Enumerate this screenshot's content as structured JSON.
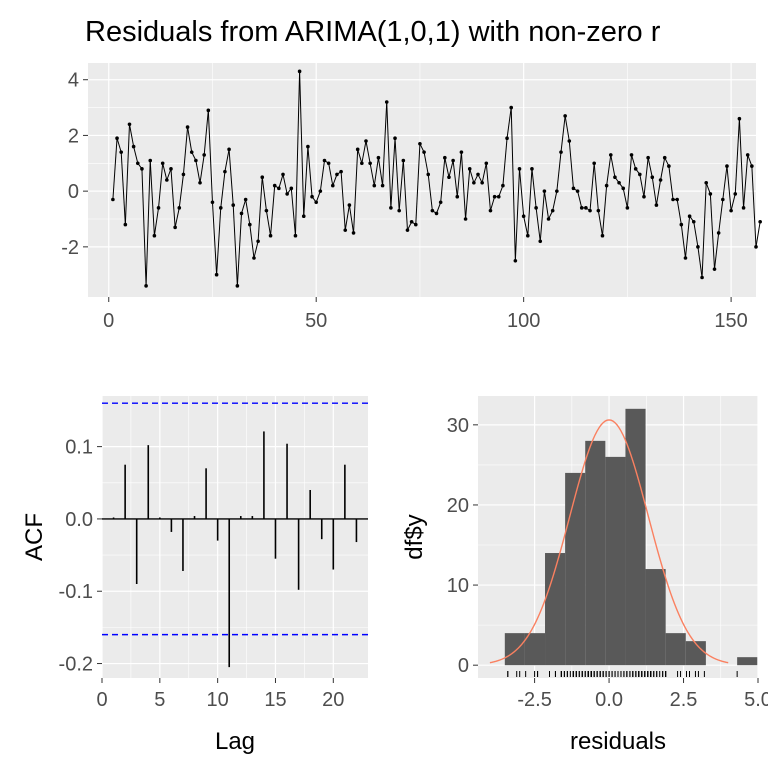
{
  "figure_title": "Residuals from ARIMA(1,0,1) with non-zero r",
  "colors": {
    "panel_bg": "#EBEBEB",
    "grid": "#FFFFFF",
    "line": "#000000",
    "ci": "#0000FF",
    "hist_fill": "#595959",
    "density": "#FA8060",
    "tick_text": "#4D4D4D"
  },
  "chart_data": [
    {
      "type": "line",
      "panel": "residual-series",
      "title": "Residuals from ARIMA(1,0,1) with non-zero r",
      "xlabel": "",
      "ylabel": "",
      "xlim": [
        -5,
        156
      ],
      "ylim": [
        -3.8,
        4.6
      ],
      "x_ticks": [
        0,
        50,
        100,
        150
      ],
      "x_tick_labels": [
        "0",
        "50",
        "100",
        "150"
      ],
      "y_ticks": [
        -2,
        0,
        2,
        4
      ],
      "y_tick_labels": [
        "-2",
        "0",
        "2",
        "4"
      ],
      "grid": true,
      "markers": true,
      "values": [
        -0.3,
        1.9,
        1.4,
        -1.2,
        2.4,
        1.6,
        1.0,
        0.8,
        -3.4,
        1.1,
        -1.6,
        -0.6,
        1.0,
        0.4,
        0.8,
        -1.3,
        -0.6,
        0.6,
        2.3,
        1.4,
        1.1,
        0.3,
        1.3,
        2.9,
        -0.4,
        -3.0,
        -0.6,
        0.7,
        1.5,
        -0.5,
        -3.4,
        -0.8,
        -0.3,
        -1.2,
        -2.4,
        -1.8,
        0.5,
        -0.7,
        -1.6,
        0.2,
        0.1,
        0.6,
        -0.1,
        0.1,
        -1.6,
        4.3,
        -0.9,
        1.6,
        -0.2,
        -0.4,
        0.0,
        1.1,
        1.0,
        0.2,
        0.6,
        0.7,
        -1.4,
        -0.5,
        -1.5,
        1.5,
        1.0,
        1.8,
        1.0,
        0.2,
        1.2,
        0.2,
        3.2,
        -0.6,
        1.9,
        -0.7,
        1.1,
        -1.4,
        -1.1,
        -1.2,
        1.7,
        1.4,
        0.6,
        -0.7,
        -0.8,
        -0.4,
        1.2,
        0.5,
        1.1,
        -0.2,
        1.4,
        -1.0,
        0.8,
        0.3,
        0.6,
        0.3,
        1.0,
        -0.7,
        -0.2,
        -0.2,
        0.2,
        1.9,
        3.0,
        -2.5,
        0.8,
        -0.9,
        -1.6,
        0.8,
        -0.6,
        -1.8,
        0.0,
        -1.0,
        -0.7,
        0.0,
        1.4,
        2.7,
        1.8,
        0.1,
        0.0,
        -0.6,
        -0.6,
        -0.7,
        1.0,
        -0.7,
        -1.6,
        0.2,
        1.3,
        0.5,
        0.3,
        0.1,
        -0.6,
        1.3,
        0.8,
        0.6,
        -0.2,
        1.2,
        0.5,
        -0.5,
        0.4,
        1.2,
        0.9,
        -0.3,
        -0.3,
        -1.2,
        -2.4,
        -0.9,
        -1.1,
        -2.0,
        -3.1,
        0.3,
        -0.1,
        -2.8,
        -1.5,
        -0.3,
        0.9,
        -0.7,
        -0.1,
        2.6,
        -0.6,
        1.3,
        0.9,
        -2.0,
        -1.1
      ]
    },
    {
      "type": "bar",
      "panel": "acf",
      "title": "",
      "xlabel": "Lag",
      "ylabel": "ACF",
      "xlim": [
        0,
        23
      ],
      "ylim": [
        -0.22,
        0.17
      ],
      "x_ticks": [
        0,
        5,
        10,
        15,
        20
      ],
      "x_tick_labels": [
        "0",
        "5",
        "10",
        "15",
        "20"
      ],
      "y_ticks": [
        -0.2,
        -0.1,
        0.0,
        0.1
      ],
      "y_tick_labels": [
        "-0.2",
        "-0.1",
        "0.0",
        "0.1"
      ],
      "grid": true,
      "lags": [
        1,
        2,
        3,
        4,
        5,
        6,
        7,
        8,
        9,
        10,
        11,
        12,
        13,
        14,
        15,
        16,
        17,
        18,
        19,
        20,
        21,
        22
      ],
      "values": [
        0.002,
        0.075,
        -0.09,
        0.102,
        0.002,
        -0.018,
        -0.072,
        0.004,
        0.07,
        -0.03,
        -0.205,
        0.004,
        0.004,
        0.121,
        -0.055,
        0.104,
        -0.098,
        0.04,
        -0.028,
        -0.07,
        0.075,
        -0.032
      ],
      "confidence_bounds": [
        0.16,
        -0.16
      ]
    },
    {
      "type": "bar",
      "panel": "histogram",
      "title": "",
      "xlabel": "residuals",
      "ylabel": "df$y",
      "xlim": [
        -4.4,
        5.0
      ],
      "ylim": [
        -1.6,
        33.6
      ],
      "x_ticks": [
        -2.5,
        0.0,
        2.5,
        5.0
      ],
      "x_tick_labels": [
        "-2.5",
        "0.0",
        "2.5",
        "5.0"
      ],
      "y_ticks": [
        0,
        10,
        20,
        30
      ],
      "y_tick_labels": [
        "0",
        "10",
        "20",
        "30"
      ],
      "grid": true,
      "bin_width": 0.675,
      "bins": [
        {
          "left": -3.5,
          "count": 4
        },
        {
          "left": -2.825,
          "count": 4
        },
        {
          "left": -2.15,
          "count": 14
        },
        {
          "left": -1.475,
          "count": 24
        },
        {
          "left": -0.8,
          "count": 28
        },
        {
          "left": -0.125,
          "count": 26
        },
        {
          "left": 0.55,
          "count": 32
        },
        {
          "left": 1.225,
          "count": 12
        },
        {
          "left": 1.9,
          "count": 4
        },
        {
          "left": 2.575,
          "count": 3
        },
        {
          "left": 3.25,
          "count": 0
        },
        {
          "left": 3.925,
          "count": 0
        },
        {
          "left": 4.3,
          "count": 1
        }
      ],
      "density_curve": {
        "mean": 0.0,
        "sd": 1.32,
        "scale": 101.3,
        "x_range": [
          -4.0,
          4.0
        ]
      }
    }
  ]
}
